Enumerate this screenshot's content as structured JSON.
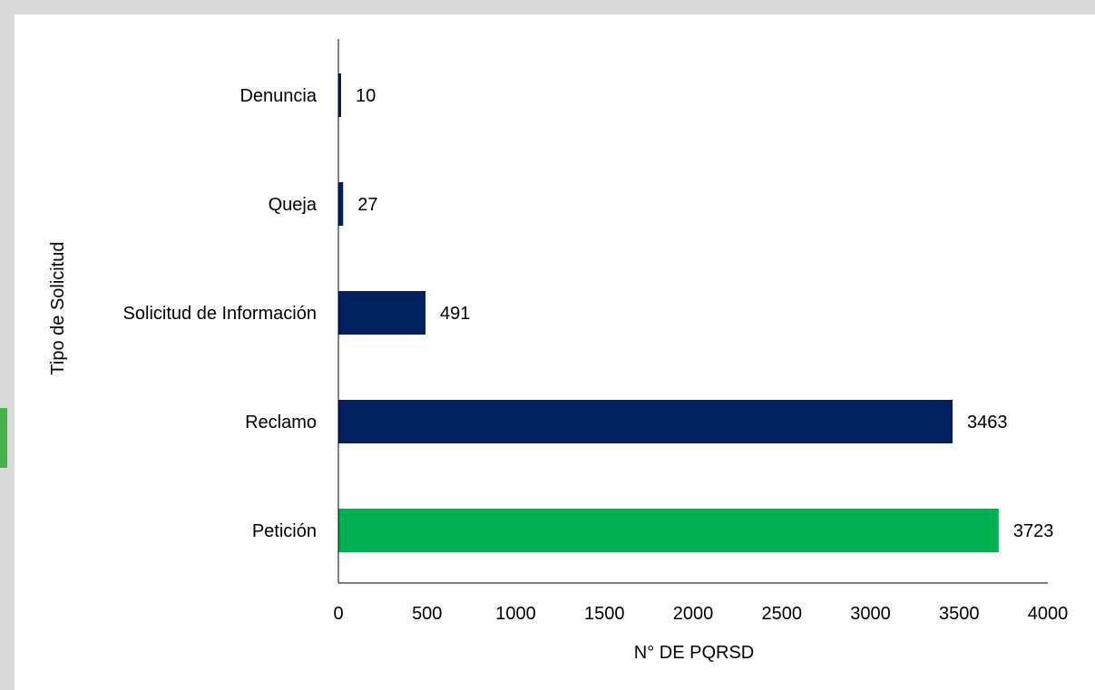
{
  "chart_data": {
    "type": "bar",
    "orientation": "horizontal",
    "categories": [
      "Denuncia",
      "Queja",
      "Solicitud de Información",
      "Reclamo",
      "Petición"
    ],
    "values": [
      10,
      27,
      491,
      3463,
      3723
    ],
    "data_labels": [
      "10",
      "27",
      "491",
      "3463",
      "3723"
    ],
    "bar_colors": [
      "#002060",
      "#002060",
      "#002060",
      "#002060",
      "#00b050"
    ],
    "title": "",
    "xlabel": "N° DE PQRSD",
    "ylabel": "Tipo de Solicitud",
    "xlim": [
      0,
      4000
    ],
    "xticks": [
      "0",
      "500",
      "1000",
      "1500",
      "2000",
      "2500",
      "3000",
      "3500",
      "4000"
    ],
    "grid": false,
    "legend": "none"
  }
}
